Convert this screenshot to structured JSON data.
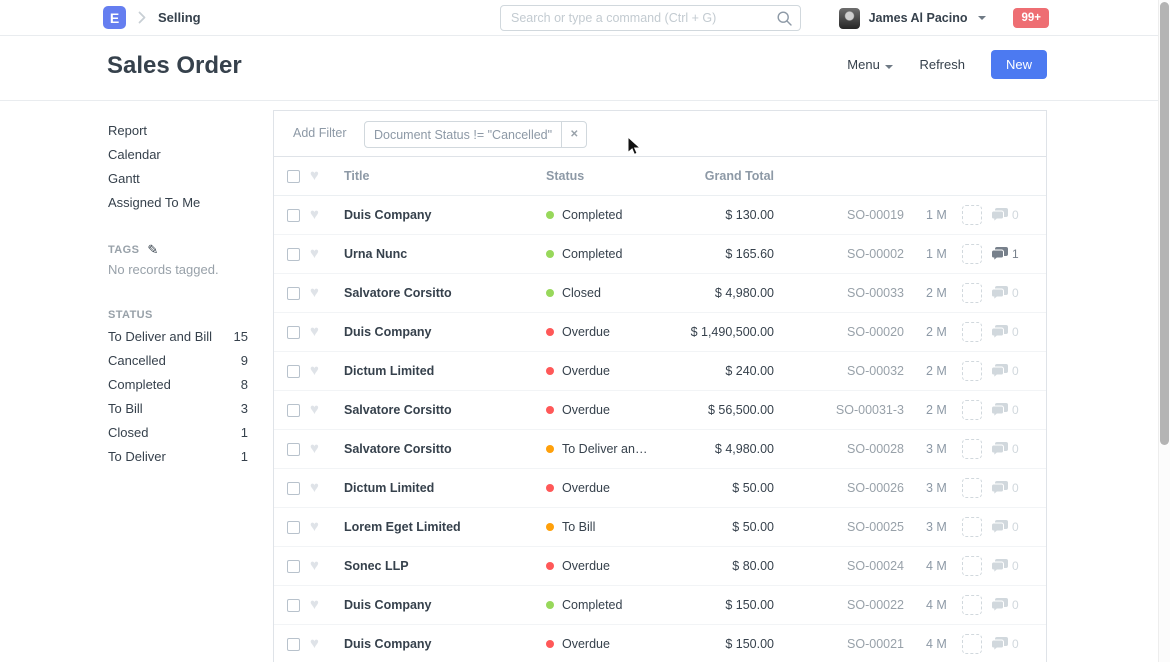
{
  "navbar": {
    "logo_text": "E",
    "breadcrumb": "Selling",
    "search_placeholder": "Search or type a command (Ctrl + G)",
    "user_name": "James Al Pacino",
    "notification_badge": "99+"
  },
  "page_header": {
    "title": "Sales Order",
    "menu_label": "Menu",
    "refresh_label": "Refresh",
    "new_label": "New"
  },
  "sidebar": {
    "links": [
      "Report",
      "Calendar",
      "Gantt",
      "Assigned To Me"
    ],
    "tags_heading": "TAGS",
    "pencil_icon": "✎",
    "tags_empty": "No records tagged.",
    "status_heading": "STATUS",
    "status_items": [
      {
        "label": "To Deliver and Bill",
        "count": "15"
      },
      {
        "label": "Cancelled",
        "count": "9"
      },
      {
        "label": "Completed",
        "count": "8"
      },
      {
        "label": "To Bill",
        "count": "3"
      },
      {
        "label": "Closed",
        "count": "1"
      },
      {
        "label": "To Deliver",
        "count": "1"
      }
    ]
  },
  "filters": {
    "add_filter_label": "Add Filter",
    "active_filter": "Document Status != \"Cancelled\"",
    "remove_icon": "✕"
  },
  "list": {
    "columns": {
      "title": "Title",
      "status": "Status",
      "total": "Grand Total"
    },
    "like_icon": "♥",
    "rows": [
      {
        "title": "Duis Company",
        "status": "Completed",
        "status_color": "green",
        "total": "$ 130.00",
        "id": "SO-00019",
        "age": "1 M",
        "comments": "0",
        "comments_dark": false
      },
      {
        "title": "Urna Nunc",
        "status": "Completed",
        "status_color": "green",
        "total": "$ 165.60",
        "id": "SO-00002",
        "age": "1 M",
        "comments": "1",
        "comments_dark": true
      },
      {
        "title": "Salvatore Corsitto",
        "status": "Closed",
        "status_color": "green",
        "total": "$ 4,980.00",
        "id": "SO-00033",
        "age": "2 M",
        "comments": "0",
        "comments_dark": false
      },
      {
        "title": "Duis Company",
        "status": "Overdue",
        "status_color": "red",
        "total": "$ 1,490,500.00",
        "id": "SO-00020",
        "age": "2 M",
        "comments": "0",
        "comments_dark": false
      },
      {
        "title": "Dictum Limited",
        "status": "Overdue",
        "status_color": "red",
        "total": "$ 240.00",
        "id": "SO-00032",
        "age": "2 M",
        "comments": "0",
        "comments_dark": false
      },
      {
        "title": "Salvatore Corsitto",
        "status": "Overdue",
        "status_color": "red",
        "total": "$ 56,500.00",
        "id": "SO-00031-3",
        "age": "2 M",
        "comments": "0",
        "comments_dark": false
      },
      {
        "title": "Salvatore Corsitto",
        "status": "To Deliver an…",
        "status_color": "orange",
        "total": "$ 4,980.00",
        "id": "SO-00028",
        "age": "3 M",
        "comments": "0",
        "comments_dark": false
      },
      {
        "title": "Dictum Limited",
        "status": "Overdue",
        "status_color": "red",
        "total": "$ 50.00",
        "id": "SO-00026",
        "age": "3 M",
        "comments": "0",
        "comments_dark": false
      },
      {
        "title": "Lorem Eget Limited",
        "status": "To Bill",
        "status_color": "orange",
        "total": "$ 50.00",
        "id": "SO-00025",
        "age": "3 M",
        "comments": "0",
        "comments_dark": false
      },
      {
        "title": "Sonec LLP",
        "status": "Overdue",
        "status_color": "red",
        "total": "$ 80.00",
        "id": "SO-00024",
        "age": "4 M",
        "comments": "0",
        "comments_dark": false
      },
      {
        "title": "Duis Company",
        "status": "Completed",
        "status_color": "green",
        "total": "$ 150.00",
        "id": "SO-00022",
        "age": "4 M",
        "comments": "0",
        "comments_dark": false
      },
      {
        "title": "Duis Company",
        "status": "Overdue",
        "status_color": "red",
        "total": "$ 150.00",
        "id": "SO-00021",
        "age": "4 M",
        "comments": "0",
        "comments_dark": false
      }
    ]
  },
  "colors": {
    "status": {
      "green": "#98d85b",
      "red": "#ff5858",
      "orange": "#ffa00a"
    },
    "brand_blue": "#4c7af1",
    "logo_blue": "#657ef0",
    "badge_red": "#ee6e73"
  }
}
